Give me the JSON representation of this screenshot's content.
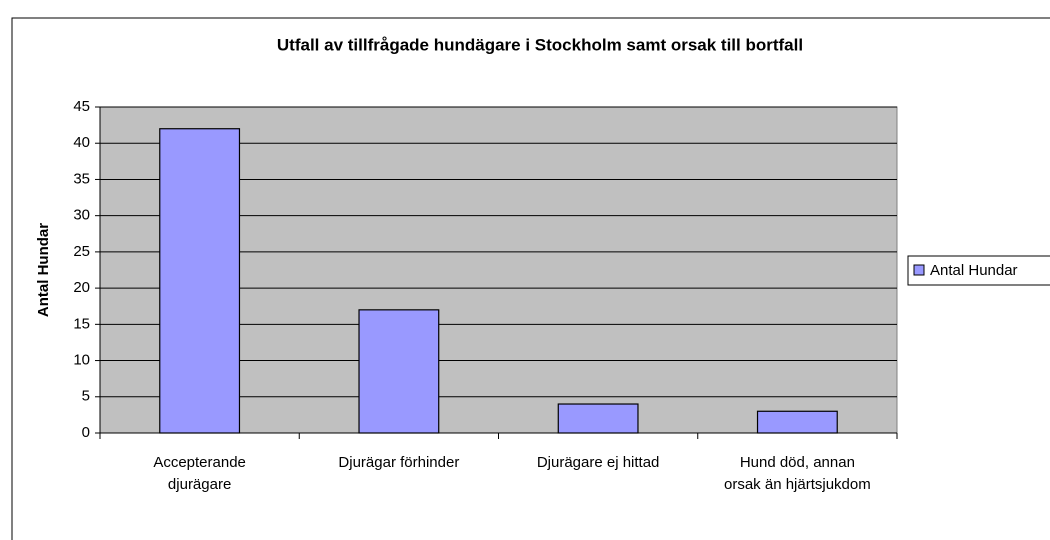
{
  "chart_data": {
    "type": "bar",
    "title": "Utfall av tillfrågade hundägare i Stockholm samt orsak till bortfall",
    "y_axis_label": "Antal Hundar",
    "categories": [
      "Accepterande djurägare",
      "Djurägar förhinder",
      "Djurägare ej hittad",
      "Hund död, annan orsak än hjärtsjukdom"
    ],
    "series": [
      {
        "name": "Antal Hundar",
        "color": "#9999ff",
        "values": [
          42,
          17,
          4,
          3
        ]
      }
    ],
    "ylim": [
      0,
      45
    ],
    "yticks": [
      0,
      5,
      10,
      15,
      20,
      25,
      30,
      35,
      40,
      45
    ],
    "grid": true,
    "legend": "right"
  }
}
